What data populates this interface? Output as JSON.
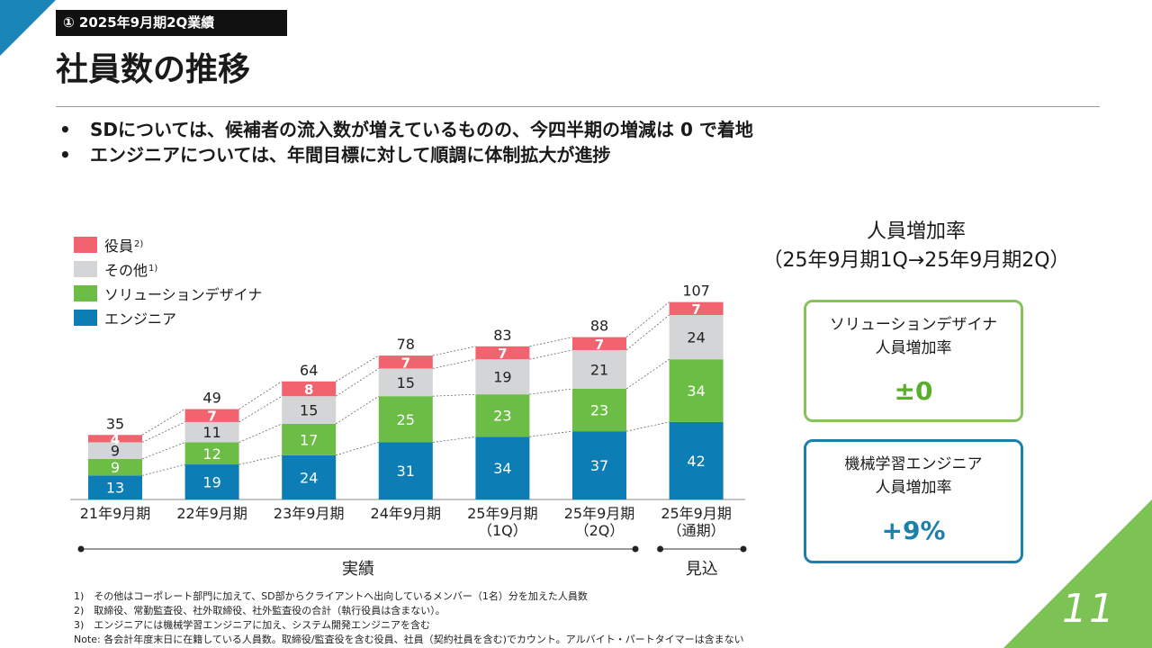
{
  "header": {
    "section_tag": "① 2025年9月期2Q業績",
    "title": "社員数の推移",
    "page_number": "11"
  },
  "bullets": [
    "SDについては、候補者の流入数が増えているものの、今四半期の増減は 0 で着地",
    "エンジニアについては、年間目標に対して順調に体制拡大が進捗"
  ],
  "legend": [
    {
      "label": "役員",
      "sup": "2)",
      "color": "#f0636f"
    },
    {
      "label": "その他",
      "sup": "1)",
      "color": "#d4d5d7"
    },
    {
      "label": "ソリューションデザイナ",
      "sup": "",
      "color": "#6cbd45"
    },
    {
      "label": "エンジニア",
      "sup": "",
      "color": "#0c7db5"
    }
  ],
  "chart_data": {
    "type": "bar",
    "stacked": true,
    "categories": [
      "21年9月期",
      "22年9月期",
      "23年9月期",
      "24年9月期",
      "25年9月期\n（1Q）",
      "25年9月期\n（2Q）",
      "25年9月期\n（通期）"
    ],
    "series": [
      {
        "name": "エンジニア",
        "color": "#0c7db5",
        "values": [
          13,
          19,
          24,
          31,
          34,
          37,
          42
        ]
      },
      {
        "name": "ソリューションデザイナ",
        "color": "#6cbd45",
        "values": [
          9,
          12,
          17,
          25,
          23,
          23,
          34
        ]
      },
      {
        "name": "その他",
        "color": "#d4d5d7",
        "values": [
          9,
          11,
          15,
          15,
          19,
          21,
          24
        ]
      },
      {
        "name": "役員",
        "color": "#f0636f",
        "values": [
          4,
          7,
          8,
          7,
          7,
          7,
          7
        ]
      }
    ],
    "totals": [
      35,
      49,
      64,
      78,
      83,
      88,
      107
    ],
    "groups": [
      {
        "label": "実績",
        "from": 0,
        "to": 5
      },
      {
        "label": "見込",
        "from": 6,
        "to": 6
      }
    ],
    "ylim": [
      0,
      115
    ]
  },
  "rate_panel": {
    "title_line1": "人員増加率",
    "title_line2": "（25年9月期1Q→25年9月期2Q）",
    "boxes": [
      {
        "label_line1": "ソリューションデザイナ",
        "label_line2": "人員増加率",
        "value": "±0"
      },
      {
        "label_line1": "機械学習エンジニア",
        "label_line2": "人員増加率",
        "value": "+9%"
      }
    ]
  },
  "notes": [
    "1)　その他はコーポレート部門に加えて、SD部からクライアントへ出向しているメンバー（1名）分を加えた人員数",
    "2)　取締役、常勤監査役、社外取締役、社外監査役の合計（執行役員は含まない）。",
    "3)　エンジニアには機械学習エンジニアに加え、システム開発エンジニアを含む",
    "Note: 各会計年度末日に在籍している人員数。取締役/監査役を含む役員、社員（契約社員を含む)でカウント。アルバイト・パートタイマーは含まない"
  ]
}
